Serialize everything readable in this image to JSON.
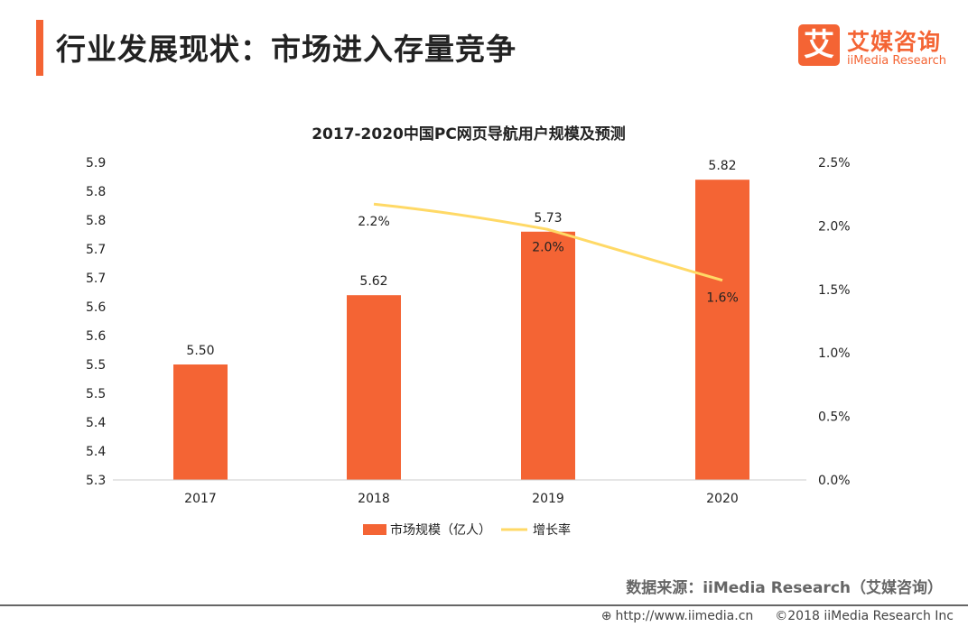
{
  "header": {
    "title": "行业发展现状：市场进入存量竞争"
  },
  "logo": {
    "mark": "艾",
    "cn": "艾媒咨询",
    "en": "iiMedia Research"
  },
  "chart_data": {
    "type": "bar+line",
    "title": "2017-2020中国PC网页导航用户规模及预测",
    "categories": [
      "2017",
      "2018",
      "2019",
      "2020"
    ],
    "series": [
      {
        "name": "市场规模（亿人）",
        "type": "bar",
        "axis": "left",
        "values": [
          5.5,
          5.62,
          5.73,
          5.82
        ],
        "labels": [
          "5.50",
          "5.62",
          "5.73",
          "5.82"
        ],
        "color": "#f46434"
      },
      {
        "name": "增长率",
        "type": "line",
        "axis": "right",
        "values": [
          null,
          2.2,
          2.0,
          1.6
        ],
        "labels": [
          "",
          "2.2%",
          "2.0%",
          "1.6%"
        ],
        "color": "#ffd966"
      }
    ],
    "left_axis": {
      "ylim": [
        5.3,
        5.85
      ],
      "ticks": [
        "5.3",
        "5.4",
        "5.4",
        "5.5",
        "5.5",
        "5.6",
        "5.6",
        "5.7",
        "5.7",
        "5.8",
        "5.8",
        "5.9"
      ]
    },
    "right_axis": {
      "ylim": [
        0,
        2.5
      ],
      "unit": "%",
      "ticks": [
        "0.0%",
        "0.5%",
        "1.0%",
        "1.5%",
        "2.0%",
        "2.5%"
      ]
    },
    "grid": false,
    "legend": "bottom"
  },
  "footer": {
    "source": "数据来源：iiMedia Research（艾媒咨询）",
    "url": "http://www.iimedia.cn",
    "copyright": "©2018  iiMedia Research  Inc"
  }
}
